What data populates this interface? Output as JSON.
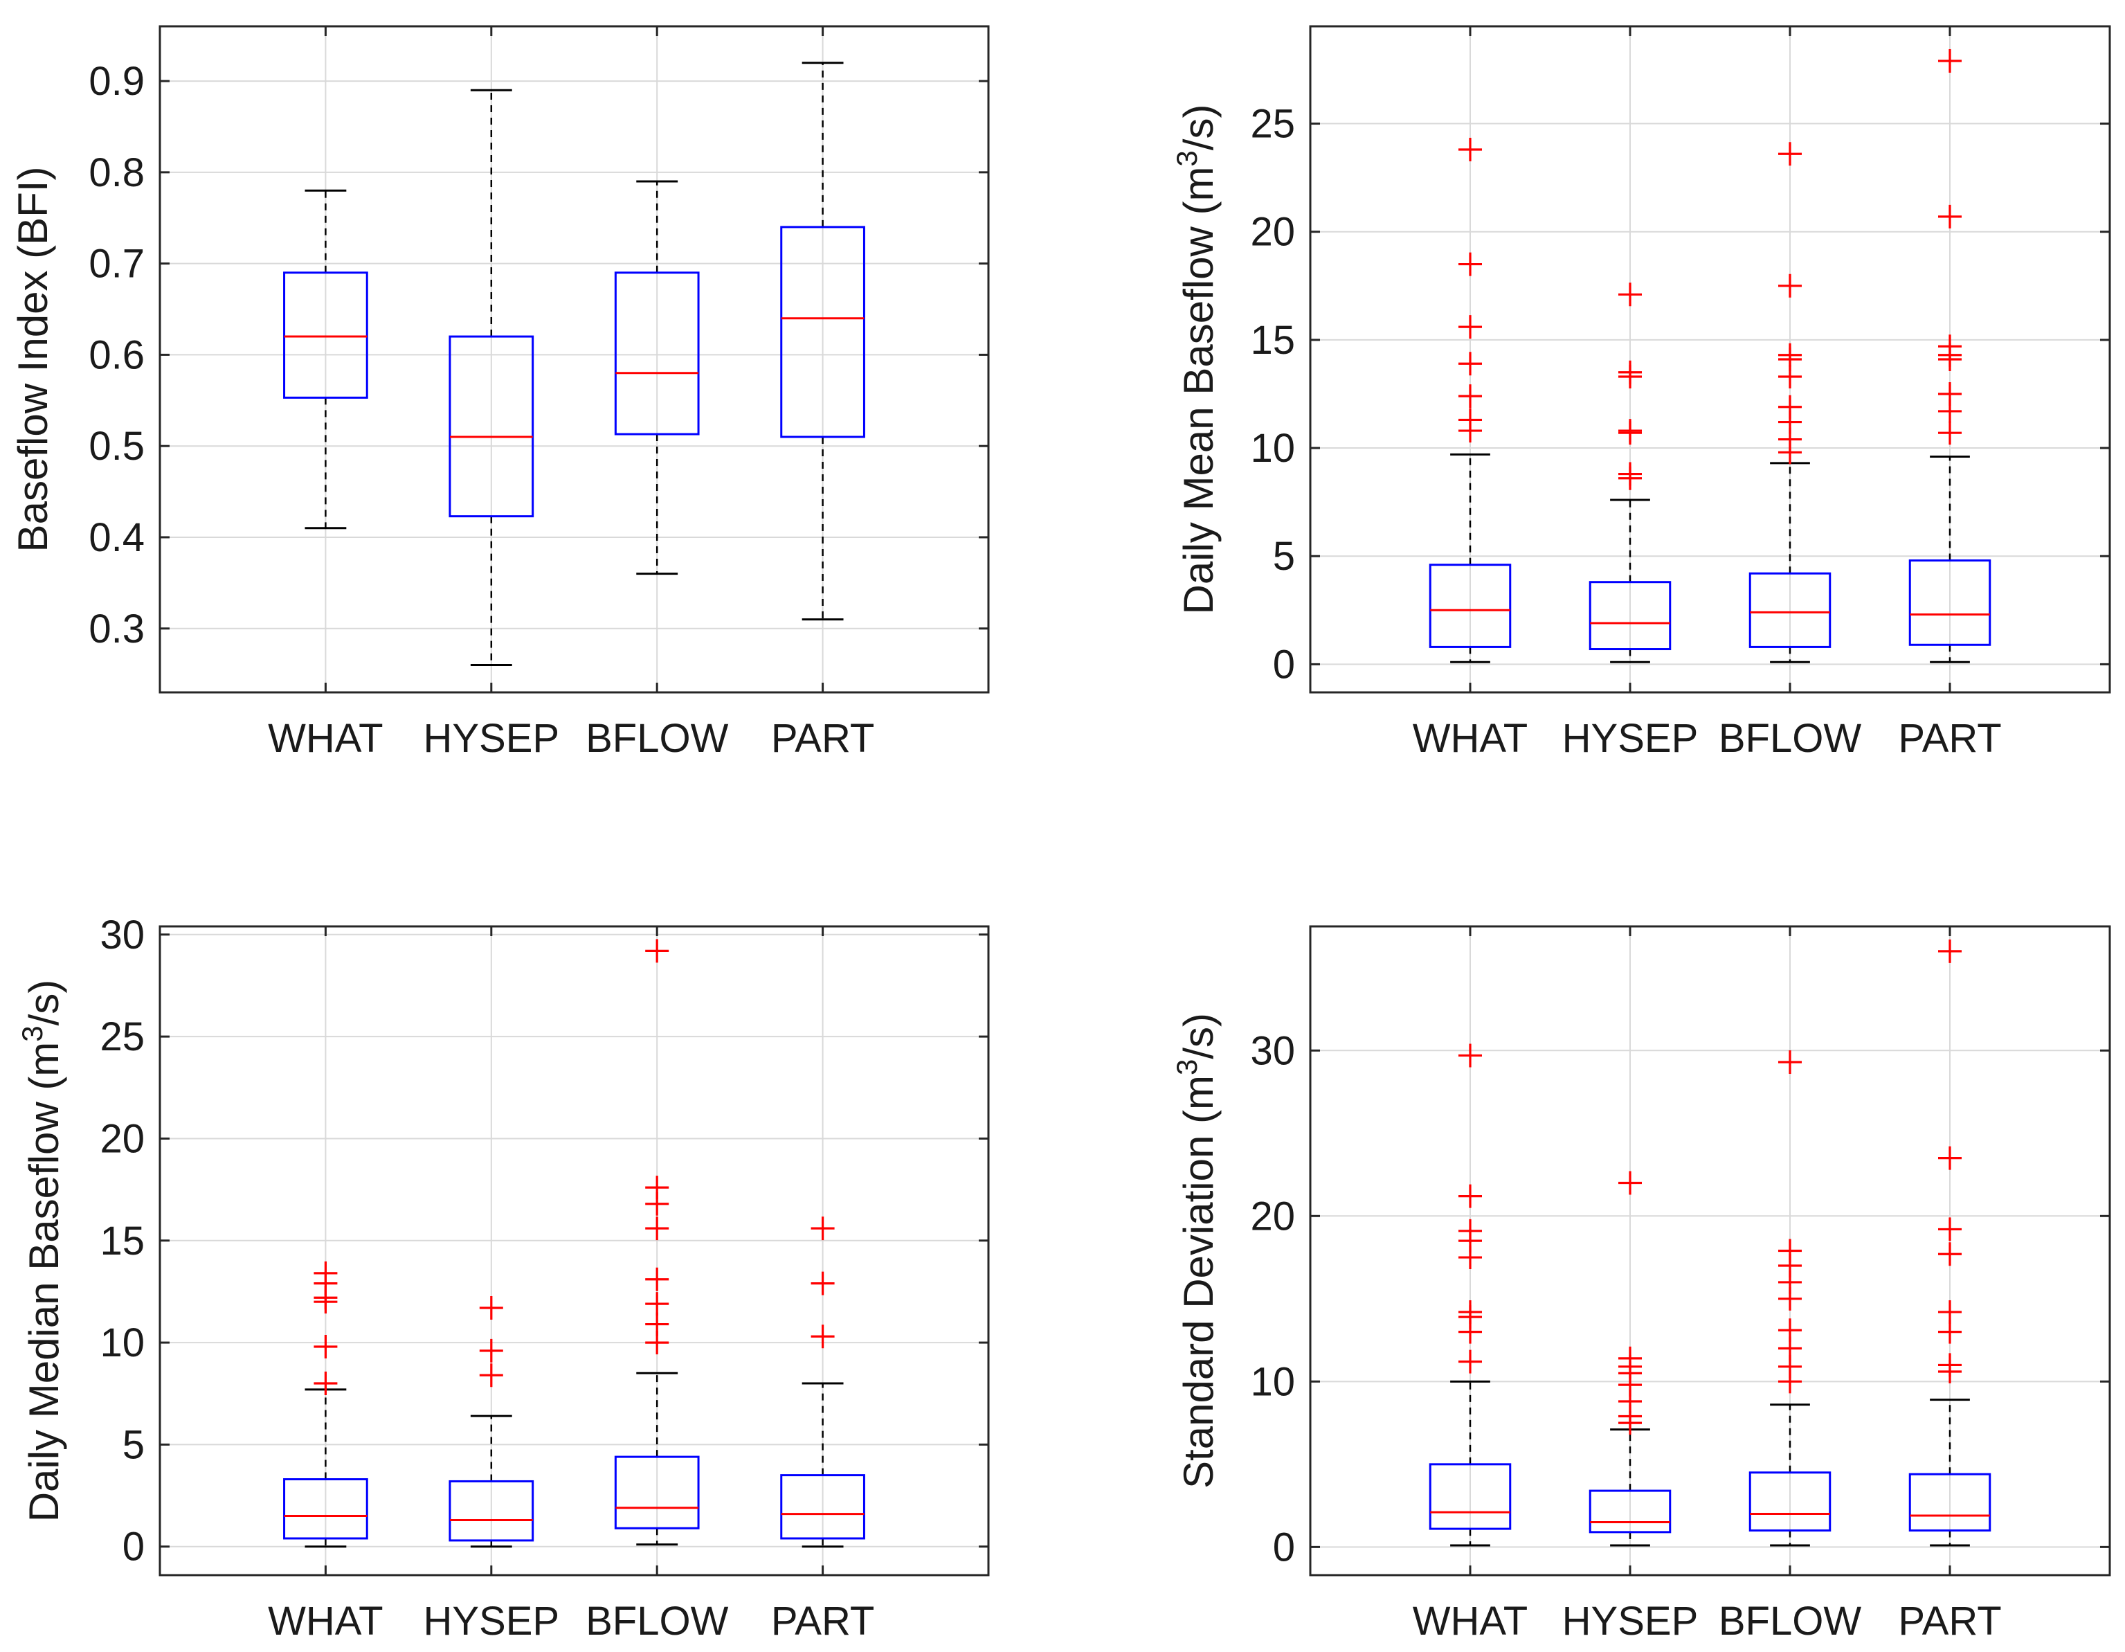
{
  "chart_data": [
    {
      "type": "boxplot",
      "ylabel": "Baseflow Index (BFI)",
      "ylim": [
        0.23,
        0.96
      ],
      "yticks": [
        0.3,
        0.4,
        0.5,
        0.6,
        0.7,
        0.8,
        0.9
      ],
      "ytick_labels": [
        "0.3",
        "0.4",
        "0.5",
        "0.6",
        "0.7",
        "0.8",
        "0.9"
      ],
      "grid": true,
      "categories": [
        "WHAT",
        "HYSEP",
        "BFLOW",
        "PART"
      ],
      "boxes": [
        {
          "name": "WHAT",
          "whisker_low": 0.41,
          "q1": 0.553,
          "median": 0.62,
          "q3": 0.69,
          "whisker_high": 0.78,
          "outliers": []
        },
        {
          "name": "HYSEP",
          "whisker_low": 0.26,
          "q1": 0.423,
          "median": 0.51,
          "q3": 0.62,
          "whisker_high": 0.89,
          "outliers": []
        },
        {
          "name": "BFLOW",
          "whisker_low": 0.36,
          "q1": 0.513,
          "median": 0.58,
          "q3": 0.69,
          "whisker_high": 0.79,
          "outliers": []
        },
        {
          "name": "PART",
          "whisker_low": 0.31,
          "q1": 0.51,
          "median": 0.64,
          "q3": 0.74,
          "whisker_high": 0.92,
          "outliers": []
        }
      ]
    },
    {
      "type": "boxplot",
      "ylabel_main": "Daily Mean Baseflow (m",
      "ylabel_sup": "3",
      "ylabel_tail": "/s)",
      "ylim": [
        -1.3,
        29.5
      ],
      "yticks": [
        0,
        5,
        10,
        15,
        20,
        25
      ],
      "ytick_labels": [
        "0",
        "5",
        "10",
        "15",
        "20",
        "25"
      ],
      "grid": true,
      "categories": [
        "WHAT",
        "HYSEP",
        "BFLOW",
        "PART"
      ],
      "boxes": [
        {
          "name": "WHAT",
          "whisker_low": 0.1,
          "q1": 0.8,
          "median": 2.5,
          "q3": 4.6,
          "whisker_high": 9.7,
          "outliers": [
            10.8,
            11.3,
            12.4,
            13.9,
            15.6,
            18.5,
            23.8
          ]
        },
        {
          "name": "HYSEP",
          "whisker_low": 0.1,
          "q1": 0.7,
          "median": 1.9,
          "q3": 3.8,
          "whisker_high": 7.6,
          "outliers": [
            8.6,
            8.8,
            10.7,
            10.8,
            13.3,
            13.5,
            17.1
          ]
        },
        {
          "name": "BFLOW",
          "whisker_low": 0.1,
          "q1": 0.8,
          "median": 2.4,
          "q3": 4.2,
          "whisker_high": 9.3,
          "outliers": [
            9.8,
            10.4,
            11.2,
            11.9,
            13.3,
            14.1,
            14.3,
            17.5,
            23.6
          ]
        },
        {
          "name": "PART",
          "whisker_low": 0.1,
          "q1": 0.9,
          "median": 2.3,
          "q3": 4.8,
          "whisker_high": 9.6,
          "outliers": [
            10.7,
            11.7,
            12.5,
            14.1,
            14.3,
            14.7,
            20.7,
            27.9
          ]
        }
      ]
    },
    {
      "type": "boxplot",
      "ylabel_main": "Daily Median Baseflow (m",
      "ylabel_sup": "3",
      "ylabel_tail": "/s)",
      "ylim": [
        -1.4,
        30.4
      ],
      "yticks": [
        0,
        5,
        10,
        15,
        20,
        25,
        30
      ],
      "ytick_labels": [
        "0",
        "5",
        "10",
        "15",
        "20",
        "25",
        "30"
      ],
      "grid": true,
      "categories": [
        "WHAT",
        "HYSEP",
        "BFLOW",
        "PART"
      ],
      "boxes": [
        {
          "name": "WHAT",
          "whisker_low": 0.0,
          "q1": 0.4,
          "median": 1.5,
          "q3": 3.3,
          "whisker_high": 7.7,
          "outliers": [
            8.0,
            9.8,
            12.0,
            12.2,
            12.9,
            13.4
          ]
        },
        {
          "name": "HYSEP",
          "whisker_low": 0.0,
          "q1": 0.3,
          "median": 1.3,
          "q3": 3.2,
          "whisker_high": 6.4,
          "outliers": [
            8.4,
            9.6,
            11.7
          ]
        },
        {
          "name": "BFLOW",
          "whisker_low": 0.1,
          "q1": 0.9,
          "median": 1.9,
          "q3": 4.4,
          "whisker_high": 8.5,
          "outliers": [
            10.0,
            10.9,
            11.9,
            13.1,
            15.6,
            16.8,
            17.6,
            29.2
          ]
        },
        {
          "name": "PART",
          "whisker_low": 0.0,
          "q1": 0.4,
          "median": 1.6,
          "q3": 3.5,
          "whisker_high": 8.0,
          "outliers": [
            10.3,
            12.9,
            15.6
          ]
        }
      ]
    },
    {
      "type": "boxplot",
      "ylabel_main": "Standard Deviation (m",
      "ylabel_sup": "3",
      "ylabel_tail": "/s)",
      "ylim": [
        -1.7,
        37.5
      ],
      "yticks": [
        0,
        10,
        20,
        30
      ],
      "ytick_labels": [
        "0",
        "10",
        "20",
        "30"
      ],
      "grid": true,
      "categories": [
        "WHAT",
        "HYSEP",
        "BFLOW",
        "PART"
      ],
      "boxes": [
        {
          "name": "WHAT",
          "whisker_low": 0.1,
          "q1": 1.1,
          "median": 2.1,
          "q3": 5.0,
          "whisker_high": 10.0,
          "outliers": [
            11.2,
            13.0,
            13.9,
            14.2,
            17.5,
            18.5,
            19.1,
            21.2,
            29.7
          ]
        },
        {
          "name": "HYSEP",
          "whisker_low": 0.1,
          "q1": 0.9,
          "median": 1.5,
          "q3": 3.4,
          "whisker_high": 7.1,
          "outliers": [
            7.5,
            7.9,
            8.8,
            9.8,
            10.5,
            10.9,
            11.4,
            22.0
          ]
        },
        {
          "name": "BFLOW",
          "whisker_low": 0.1,
          "q1": 1.0,
          "median": 2.0,
          "q3": 4.5,
          "whisker_high": 8.6,
          "outliers": [
            10.0,
            10.9,
            12.0,
            13.1,
            15.0,
            16.0,
            17.0,
            17.9,
            29.3
          ]
        },
        {
          "name": "PART",
          "whisker_low": 0.1,
          "q1": 1.0,
          "median": 1.9,
          "q3": 4.4,
          "whisker_high": 8.9,
          "outliers": [
            10.6,
            11.0,
            13.0,
            14.2,
            17.7,
            19.2,
            23.5,
            36.0
          ]
        }
      ]
    }
  ],
  "colors": {
    "box": "#0000ff",
    "median": "#ff0000",
    "outlier": "#ff0000",
    "whisker": "#000000",
    "grid": "#d9d9d9",
    "axes": "#262626"
  }
}
